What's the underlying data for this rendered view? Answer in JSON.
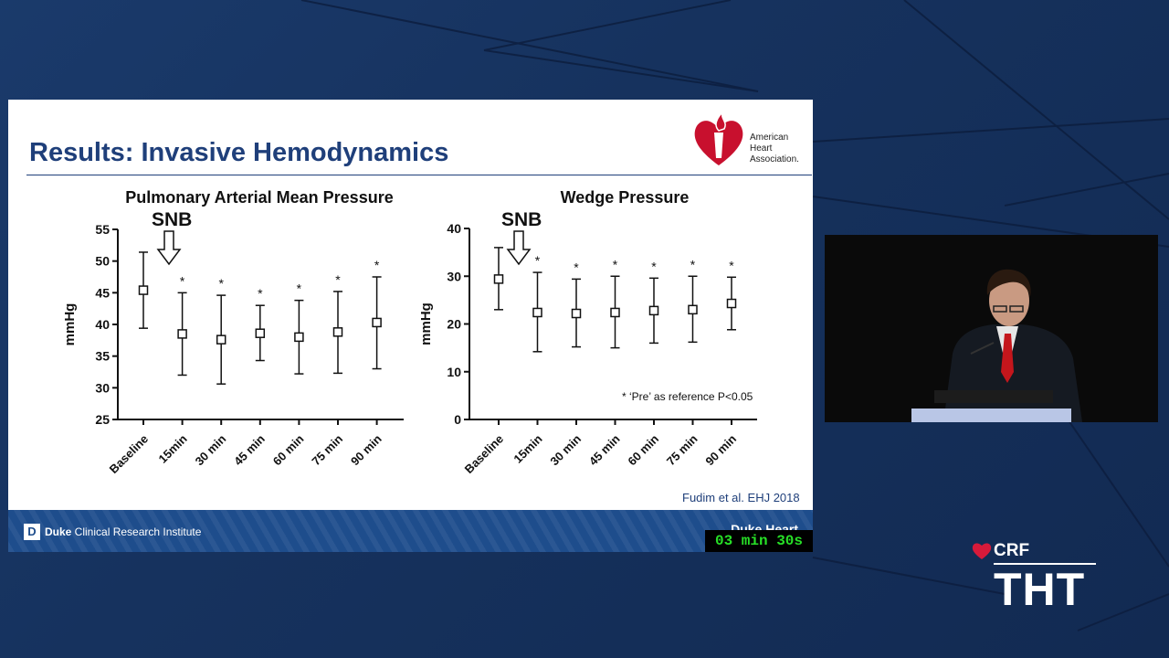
{
  "slide": {
    "title": "Results: Invasive Hemodynamics",
    "logo": {
      "name_line1": "American",
      "name_line2": "Heart",
      "name_line3": "Association."
    },
    "footnote": "*  ‘Pre’ as reference P<0.05",
    "citation": "Fudim et al. EHJ  2018",
    "footer": {
      "institute_bold": "Duke",
      "institute_rest": " Clinical Research Institute",
      "right_text": "Duke Heart"
    }
  },
  "timer": "03 min 30s",
  "event_logo": {
    "org": "CRF",
    "event": "THT"
  },
  "colors": {
    "slide_title": "#1f3f7a",
    "footer_band": "#1e4d8c",
    "timer_text": "#27e027",
    "aha_red": "#c8102e"
  },
  "chart_data": [
    {
      "type": "scatter",
      "title": "Pulmonary Arterial Mean Pressure",
      "ylabel": "mmHg",
      "xlabel": "",
      "categories": [
        "Baseline",
        "15min",
        "30 min",
        "45 min",
        "60 min",
        "75 min",
        "90 min"
      ],
      "series": [
        {
          "values": [
            45.4,
            38.5,
            37.6,
            38.6,
            38.0,
            38.8,
            40.3
          ],
          "error_low": [
            39.4,
            32.0,
            30.6,
            34.3,
            32.2,
            32.3,
            33.0
          ],
          "error_high": [
            51.4,
            45.0,
            44.6,
            43.0,
            43.8,
            45.2,
            47.5
          ],
          "significant": [
            false,
            true,
            true,
            true,
            true,
            true,
            true
          ]
        }
      ],
      "ylim": [
        25,
        55
      ],
      "yticks": [
        25,
        30,
        35,
        40,
        45,
        50,
        55
      ],
      "annotation": "SNB",
      "marker": "square"
    },
    {
      "type": "scatter",
      "title": "Wedge Pressure",
      "ylabel": "mmHg",
      "xlabel": "",
      "categories": [
        "Baseline",
        "15min",
        "30 min",
        "45 min",
        "60 min",
        "75 min",
        "90 min"
      ],
      "series": [
        {
          "values": [
            29.4,
            22.4,
            22.2,
            22.4,
            22.8,
            23.0,
            24.3
          ],
          "error_low": [
            23.0,
            14.2,
            15.2,
            15.0,
            16.0,
            16.2,
            18.8
          ],
          "error_high": [
            36.0,
            30.8,
            29.4,
            30.0,
            29.6,
            30.0,
            29.8
          ],
          "significant": [
            false,
            true,
            true,
            true,
            true,
            true,
            true
          ]
        }
      ],
      "ylim": [
        0,
        40
      ],
      "yticks": [
        0,
        10,
        20,
        30,
        40
      ],
      "annotation": "SNB",
      "marker": "square"
    }
  ]
}
